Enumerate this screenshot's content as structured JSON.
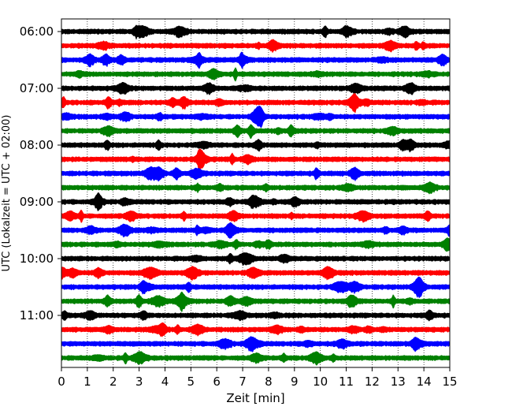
{
  "chart_data": {
    "type": "line",
    "title": "",
    "xlabel": "Zeit  [min]",
    "ylabel": "UTC (Lokalzeit = UTC + 02:00)",
    "xlim": [
      0,
      15
    ],
    "x_ticks": [
      "0",
      "1",
      "2",
      "3",
      "4",
      "5",
      "6",
      "7",
      "8",
      "9",
      "10",
      "11",
      "12",
      "13",
      "14",
      "15"
    ],
    "y_ticks": [
      "06:00",
      "07:00",
      "08:00",
      "09:00",
      "10:00",
      "11:00"
    ],
    "grid": "vertical dotted at each minute",
    "trace_interval_min": 15,
    "color_cycle": [
      "#000000",
      "#ff0000",
      "#0000ff",
      "#008000"
    ],
    "series": [
      {
        "start": "06:00",
        "color": "#000000"
      },
      {
        "start": "06:15",
        "color": "#ff0000"
      },
      {
        "start": "06:30",
        "color": "#0000ff"
      },
      {
        "start": "06:45",
        "color": "#008000"
      },
      {
        "start": "07:00",
        "color": "#000000"
      },
      {
        "start": "07:15",
        "color": "#ff0000"
      },
      {
        "start": "07:30",
        "color": "#0000ff"
      },
      {
        "start": "07:45",
        "color": "#008000"
      },
      {
        "start": "08:00",
        "color": "#000000"
      },
      {
        "start": "08:15",
        "color": "#ff0000"
      },
      {
        "start": "08:30",
        "color": "#0000ff"
      },
      {
        "start": "08:45",
        "color": "#008000"
      },
      {
        "start": "09:00",
        "color": "#000000"
      },
      {
        "start": "09:15",
        "color": "#ff0000"
      },
      {
        "start": "09:30",
        "color": "#0000ff"
      },
      {
        "start": "09:45",
        "color": "#008000"
      },
      {
        "start": "10:00",
        "color": "#000000"
      },
      {
        "start": "10:15",
        "color": "#ff0000"
      },
      {
        "start": "10:30",
        "color": "#0000ff"
      },
      {
        "start": "10:45",
        "color": "#008000"
      },
      {
        "start": "11:00",
        "color": "#000000"
      },
      {
        "start": "11:15",
        "color": "#ff0000"
      },
      {
        "start": "11:30",
        "color": "#0000ff"
      },
      {
        "start": "11:45",
        "color": "#008000"
      }
    ]
  }
}
